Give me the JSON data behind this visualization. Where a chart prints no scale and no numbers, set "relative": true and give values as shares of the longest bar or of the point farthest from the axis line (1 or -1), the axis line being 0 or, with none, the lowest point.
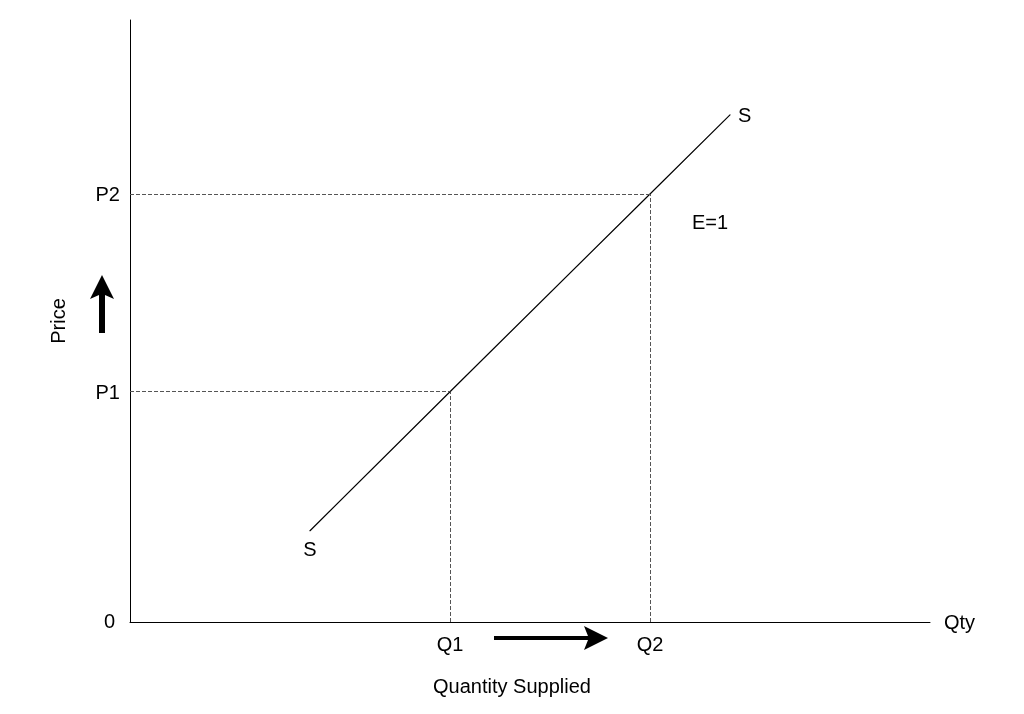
{
  "chart_data": {
    "type": "line",
    "relative": true,
    "xlabel": "Qty",
    "ylabel": "Price",
    "tick_labels": "x",
    "categories": [
      null,
      null,
      null,
      null,
      null,
      null,
      null,
      null,
      null,
      null,
      null,
      null,
      null,
      null,
      null,
      null,
      "Q1",
      null,
      null,
      null,
      null,
      null,
      null,
      null,
      null,
      null,
      "Q2",
      null,
      null,
      null,
      null,
      null,
      null,
      null,
      null,
      null,
      null,
      null,
      null,
      null,
      null
    ],
    "grid": false,
    "legend": false,
    "marker": "none",
    "line_style": "solid",
    "series": [
      {
        "name": "S",
        "color": "#000000",
        "values": [
          null,
          null,
          null,
          null,
          null,
          null,
          null,
          null,
          null,
          0.18,
          null,
          null,
          null,
          null,
          null,
          null,
          0.454,
          null,
          null,
          null,
          null,
          null,
          null,
          null,
          null,
          null,
          0.844,
          null,
          null,
          null,
          1,
          null,
          null,
          null,
          null,
          null,
          null,
          null,
          null,
          null,
          null
        ]
      }
    ],
    "ref_lines": [
      {
        "axis": "y",
        "value": 0.454,
        "label": "P1",
        "color": "#555555",
        "line_style": "dashed"
      },
      {
        "axis": "y",
        "value": 0.844,
        "label": "P2",
        "color": "#555555",
        "line_style": "dashed"
      },
      {
        "axis": "x",
        "value": "Q1",
        "color": "#555555",
        "line_style": "dashed"
      },
      {
        "axis": "x",
        "value": "Q2",
        "color": "#555555",
        "line_style": "dashed"
      }
    ],
    "annotations": [
      "E=1",
      "Quantity Supplied",
      "0"
    ]
  }
}
